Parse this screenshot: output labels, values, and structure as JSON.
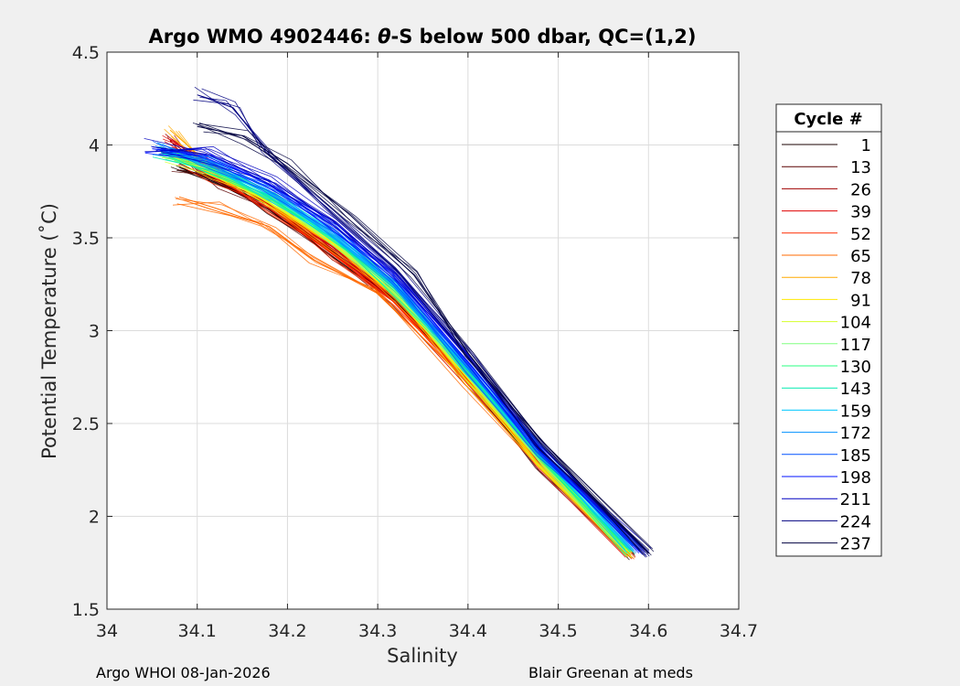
{
  "chart_data": {
    "type": "line",
    "title_prefix": "Argo WMO 4902446: ",
    "title_symbol": "θ",
    "title_suffix": "-S below 500 dbar,  QC=(1,2)",
    "xlabel": "Salinity",
    "ylabel": "Potential Temperature (˚C)",
    "xlim": [
      34.0,
      34.7
    ],
    "ylim": [
      1.5,
      4.5
    ],
    "xticks": [
      "34",
      "34.1",
      "34.2",
      "34.3",
      "34.4",
      "34.5",
      "34.6",
      "34.7"
    ],
    "yticks": [
      "1.5",
      "2",
      "2.5",
      "3",
      "3.5",
      "4",
      "4.5"
    ],
    "grid": true,
    "legend_title": "Cycle #",
    "legend_position": "right",
    "series": [
      {
        "name": "1",
        "color": "#1a0000",
        "s": [
          34.08,
          34.12,
          34.18,
          34.25,
          34.32,
          34.4,
          34.48,
          34.58
        ],
        "t": [
          3.88,
          3.8,
          3.65,
          3.4,
          3.15,
          2.72,
          2.27,
          1.79
        ]
      },
      {
        "name": "13",
        "color": "#5a0000",
        "s": [
          34.08,
          34.12,
          34.18,
          34.25,
          34.32,
          34.4,
          34.48,
          34.58
        ],
        "t": [
          3.9,
          3.81,
          3.66,
          3.42,
          3.16,
          2.73,
          2.28,
          1.8
        ]
      },
      {
        "name": "26",
        "color": "#a00000",
        "s": [
          34.07,
          34.11,
          34.18,
          34.25,
          34.32,
          34.4,
          34.48,
          34.58
        ],
        "t": [
          4.02,
          3.88,
          3.68,
          3.43,
          3.17,
          2.73,
          2.28,
          1.8
        ]
      },
      {
        "name": "39",
        "color": "#e00000",
        "s": [
          34.07,
          34.11,
          34.18,
          34.25,
          34.32,
          34.4,
          34.48,
          34.58
        ],
        "t": [
          4.03,
          3.9,
          3.69,
          3.44,
          3.17,
          2.73,
          2.28,
          1.8
        ]
      },
      {
        "name": "52",
        "color": "#ff2a00",
        "s": [
          34.08,
          34.12,
          34.18,
          34.25,
          34.32,
          34.4,
          34.48,
          34.58
        ],
        "t": [
          3.92,
          3.82,
          3.66,
          3.41,
          3.15,
          2.72,
          2.27,
          1.79
        ]
      },
      {
        "name": "65",
        "color": "#ff6a00",
        "s": [
          34.08,
          34.12,
          34.18,
          34.23,
          34.3,
          34.4,
          34.48,
          34.58
        ],
        "t": [
          3.72,
          3.66,
          3.56,
          3.38,
          3.2,
          2.72,
          2.27,
          1.79
        ]
      },
      {
        "name": "78",
        "color": "#ffaa00",
        "s": [
          34.07,
          34.11,
          34.18,
          34.25,
          34.32,
          34.4,
          34.48,
          34.58
        ],
        "t": [
          4.08,
          3.91,
          3.69,
          3.46,
          3.18,
          2.74,
          2.29,
          1.8
        ]
      },
      {
        "name": "91",
        "color": "#ffea00",
        "s": [
          34.07,
          34.11,
          34.18,
          34.25,
          34.32,
          34.4,
          34.48,
          34.58
        ],
        "t": [
          3.94,
          3.86,
          3.69,
          3.47,
          3.19,
          2.74,
          2.29,
          1.8
        ]
      },
      {
        "name": "104",
        "color": "#d4ff2a",
        "s": [
          34.07,
          34.11,
          34.18,
          34.25,
          34.32,
          34.4,
          34.48,
          34.58
        ],
        "t": [
          3.94,
          3.87,
          3.7,
          3.48,
          3.2,
          2.75,
          2.3,
          1.8
        ]
      },
      {
        "name": "117",
        "color": "#80ff80",
        "s": [
          34.07,
          34.11,
          34.18,
          34.25,
          34.32,
          34.4,
          34.48,
          34.58
        ],
        "t": [
          3.95,
          3.88,
          3.71,
          3.49,
          3.21,
          2.76,
          2.3,
          1.81
        ]
      },
      {
        "name": "130",
        "color": "#2aff80",
        "s": [
          34.06,
          34.11,
          34.18,
          34.25,
          34.32,
          34.4,
          34.48,
          34.58
        ],
        "t": [
          3.96,
          3.89,
          3.72,
          3.5,
          3.22,
          2.77,
          2.31,
          1.81
        ]
      },
      {
        "name": "143",
        "color": "#00eab0",
        "s": [
          34.06,
          34.11,
          34.18,
          34.25,
          34.32,
          34.4,
          34.48,
          34.58
        ],
        "t": [
          3.96,
          3.9,
          3.73,
          3.51,
          3.23,
          2.78,
          2.32,
          1.82
        ]
      },
      {
        "name": "159",
        "color": "#00c8ff",
        "s": [
          34.06,
          34.11,
          34.18,
          34.25,
          34.32,
          34.4,
          34.48,
          34.58
        ],
        "t": [
          3.97,
          3.91,
          3.74,
          3.52,
          3.24,
          2.79,
          2.33,
          1.82
        ]
      },
      {
        "name": "172",
        "color": "#0090ff",
        "s": [
          34.06,
          34.11,
          34.18,
          34.25,
          34.32,
          34.4,
          34.48,
          34.59
        ],
        "t": [
          3.97,
          3.92,
          3.75,
          3.53,
          3.25,
          2.8,
          2.34,
          1.82
        ]
      },
      {
        "name": "185",
        "color": "#0050ff",
        "s": [
          34.06,
          34.11,
          34.18,
          34.25,
          34.32,
          34.4,
          34.48,
          34.59
        ],
        "t": [
          3.98,
          3.93,
          3.77,
          3.55,
          3.27,
          2.81,
          2.35,
          1.82
        ]
      },
      {
        "name": "198",
        "color": "#0010ff",
        "s": [
          34.05,
          34.11,
          34.18,
          34.25,
          34.32,
          34.4,
          34.48,
          34.59
        ],
        "t": [
          3.98,
          3.94,
          3.79,
          3.57,
          3.29,
          2.83,
          2.37,
          1.81
        ]
      },
      {
        "name": "211",
        "color": "#0000c0",
        "s": [
          34.05,
          34.11,
          34.18,
          34.25,
          34.32,
          34.4,
          34.48,
          34.6
        ],
        "t": [
          3.99,
          3.95,
          3.81,
          3.59,
          3.31,
          2.85,
          2.38,
          1.81
        ]
      },
      {
        "name": "224",
        "color": "#000080",
        "s": [
          34.1,
          34.14,
          34.18,
          34.25,
          34.32,
          34.4,
          34.48,
          34.6
        ],
        "t": [
          4.27,
          4.2,
          3.95,
          3.63,
          3.33,
          2.86,
          2.39,
          1.8
        ]
      },
      {
        "name": "237",
        "color": "#000040",
        "s": [
          34.1,
          34.15,
          34.2,
          34.27,
          34.34,
          34.4,
          34.48,
          34.6
        ],
        "t": [
          4.1,
          4.05,
          3.9,
          3.62,
          3.3,
          2.88,
          2.4,
          1.8
        ]
      }
    ]
  },
  "footer": {
    "left": "Argo WHOI 08-Jan-2026",
    "right": "Blair Greenan at meds"
  }
}
